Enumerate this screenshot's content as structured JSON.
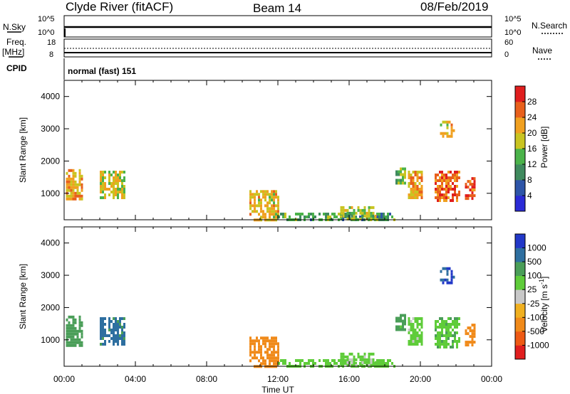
{
  "header": {
    "station": "Clyde River (fitACF)",
    "beam": "Beam 14",
    "date": "08/Feb/2019"
  },
  "strips": {
    "nsky_label": "N.Sky",
    "nsky_ticks": [
      "10^5",
      "10^0"
    ],
    "nsearch_label": "N.Search",
    "nsearch_ticks": [
      "10^5",
      "10^0"
    ],
    "freq_label_1": "Freq.",
    "freq_label_2": "[MHz]",
    "freq_ticks": [
      "18",
      "8"
    ],
    "nave_label": "Nave",
    "nave_ticks": [
      "60",
      "0"
    ],
    "cpid_label": "CPID",
    "cpid_text": "normal (fast) 151"
  },
  "colors": {
    "power": [
      "#2b2bd6",
      "#2e55a8",
      "#3f8a5e",
      "#4bb34a",
      "#c9c421",
      "#f0a020",
      "#e8601c",
      "#e01e1e"
    ],
    "velocity": [
      "#e01e1e",
      "#ee5a14",
      "#f08a1a",
      "#f0b020",
      "#c8c8c8",
      "#5fcc3a",
      "#4a9e58",
      "#2e6fa0",
      "#2238c8"
    ]
  },
  "chart_data": [
    {
      "type": "heatmap",
      "title": "Power",
      "xlabel": "Time UT",
      "ylabel": "Slant Range [km]",
      "colorbar_label": "Power [dB]",
      "colorbar_ticks": [
        "28",
        "24",
        "20",
        "16",
        "12",
        "8",
        "4"
      ],
      "colorbar_range": [
        0,
        32
      ],
      "x_ticks": [
        "00:00",
        "04:00",
        "08:00",
        "12:00",
        "16:00",
        "20:00",
        "00:00"
      ],
      "y_ticks": [
        "4000",
        "3000",
        "2000",
        "1000"
      ],
      "xlim_hours": [
        0,
        24
      ],
      "ylim_km": [
        180,
        4500
      ],
      "regions": [
        {
          "t": [
            0.1,
            1.0
          ],
          "r": [
            850,
            1750
          ],
          "value": 22
        },
        {
          "t": [
            2.0,
            3.4
          ],
          "r": [
            900,
            1700
          ],
          "value": 18
        },
        {
          "t": [
            10.4,
            12.0
          ],
          "r": [
            200,
            1100
          ],
          "value": 20
        },
        {
          "t": [
            12.0,
            18.5
          ],
          "r": [
            180,
            400
          ],
          "value": 12
        },
        {
          "t": [
            15.5,
            17.5
          ],
          "r": [
            200,
            600
          ],
          "value": 16
        },
        {
          "t": [
            18.6,
            19.2
          ],
          "r": [
            1300,
            1800
          ],
          "value": 14
        },
        {
          "t": [
            19.3,
            20.1
          ],
          "r": [
            900,
            1700
          ],
          "value": 22
        },
        {
          "t": [
            20.8,
            22.2
          ],
          "r": [
            800,
            1700
          ],
          "value": 26
        },
        {
          "t": [
            21.1,
            21.9
          ],
          "r": [
            2800,
            3250
          ],
          "value": 20
        },
        {
          "t": [
            22.5,
            23.0
          ],
          "r": [
            800,
            1500
          ],
          "value": 28
        }
      ]
    },
    {
      "type": "heatmap",
      "title": "Velocity",
      "xlabel": "Time UT",
      "ylabel": "Slant Range [km]",
      "colorbar_label": "Velocity [m s^-1]",
      "colorbar_ticks": [
        "1000",
        "500",
        "100",
        "25",
        "-25",
        "-100",
        "-500",
        "-1000"
      ],
      "x_ticks": [
        "00:00",
        "04:00",
        "08:00",
        "12:00",
        "16:00",
        "20:00",
        "00:00"
      ],
      "y_ticks": [
        "4000",
        "3000",
        "2000",
        "1000"
      ],
      "xlim_hours": [
        0,
        24
      ],
      "ylim_km": [
        180,
        4500
      ],
      "regions": [
        {
          "t": [
            0.1,
            1.0
          ],
          "r": [
            850,
            1750
          ],
          "value": 300
        },
        {
          "t": [
            2.0,
            3.4
          ],
          "r": [
            900,
            1700
          ],
          "value": 700
        },
        {
          "t": [
            10.4,
            12.0
          ],
          "r": [
            200,
            1100
          ],
          "value": -300
        },
        {
          "t": [
            12.0,
            18.5
          ],
          "r": [
            180,
            400
          ],
          "value": 60
        },
        {
          "t": [
            15.5,
            17.5
          ],
          "r": [
            200,
            600
          ],
          "value": 40
        },
        {
          "t": [
            18.6,
            19.2
          ],
          "r": [
            1300,
            1800
          ],
          "value": 150
        },
        {
          "t": [
            19.3,
            20.1
          ],
          "r": [
            900,
            1700
          ],
          "value": 50
        },
        {
          "t": [
            20.8,
            22.2
          ],
          "r": [
            800,
            1700
          ],
          "value": 80
        },
        {
          "t": [
            21.1,
            21.9
          ],
          "r": [
            2800,
            3250
          ],
          "value": 900
        },
        {
          "t": [
            22.5,
            23.0
          ],
          "r": [
            800,
            1500
          ],
          "value": -200
        }
      ]
    }
  ]
}
